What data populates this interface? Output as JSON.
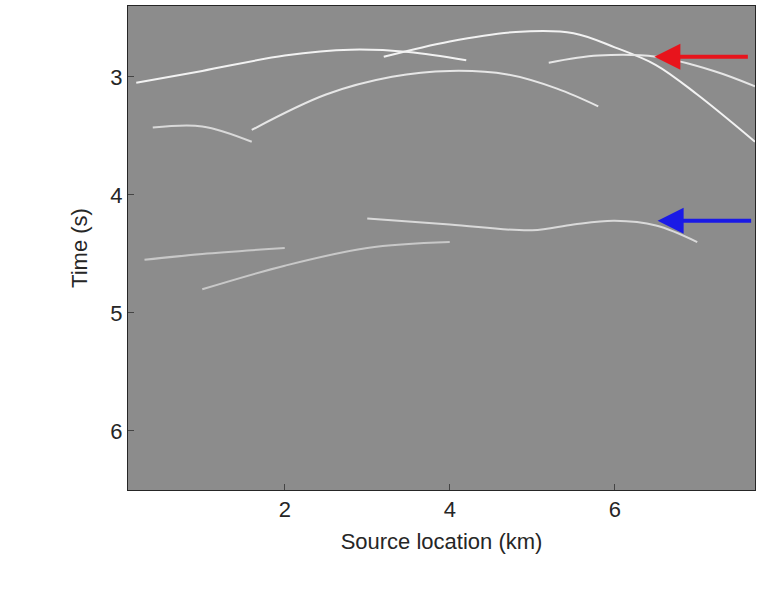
{
  "chart_data": {
    "type": "line",
    "x_label": "Source location (km)",
    "y_label": "Time (s)",
    "xlim": [
      0.1,
      7.7
    ],
    "xticks": [
      2,
      4,
      6
    ],
    "ylim": [
      6.5,
      2.4
    ],
    "yticks": [
      3,
      4,
      5,
      6
    ],
    "grid": false,
    "series": [
      {
        "color": "#f2f2f2",
        "x": [
          0.2,
          1.0,
          2.0,
          2.8,
          3.5,
          4.2
        ],
        "values": [
          3.05,
          2.95,
          2.82,
          2.77,
          2.79,
          2.86
        ]
      },
      {
        "color": "#f2f2f2",
        "x": [
          3.2,
          4.0,
          4.8,
          5.5,
          6.0,
          6.5,
          7.0,
          7.7
        ],
        "values": [
          2.83,
          2.7,
          2.62,
          2.63,
          2.75,
          2.9,
          3.15,
          3.55
        ]
      },
      {
        "color": "#e6e6e6",
        "x": [
          5.2,
          5.8,
          6.5,
          7.2,
          7.7
        ],
        "values": [
          2.88,
          2.82,
          2.83,
          2.95,
          3.08
        ]
      },
      {
        "color": "#e6e6e6",
        "x": [
          1.6,
          2.5,
          3.3,
          4.0,
          4.7,
          5.3,
          5.8
        ],
        "values": [
          3.45,
          3.15,
          3.0,
          2.95,
          2.98,
          3.1,
          3.25
        ]
      },
      {
        "color": "#d9d9d9",
        "x": [
          0.4,
          1.0,
          1.6
        ],
        "values": [
          3.43,
          3.42,
          3.55
        ]
      },
      {
        "color": "#d9d9d9",
        "x": [
          3.0,
          4.0,
          5.0,
          5.5,
          6.0,
          6.5,
          7.0
        ],
        "values": [
          4.2,
          4.25,
          4.3,
          4.25,
          4.22,
          4.26,
          4.4
        ]
      },
      {
        "color": "#c8c8c8",
        "x": [
          0.3,
          1.0,
          2.0
        ],
        "values": [
          4.55,
          4.5,
          4.45
        ]
      },
      {
        "color": "#c8c8c8",
        "x": [
          1.0,
          2.0,
          3.0,
          4.0
        ],
        "values": [
          4.8,
          4.6,
          4.45,
          4.4
        ]
      }
    ],
    "arrows": [
      {
        "x": 6.48,
        "y": 2.83,
        "color": "#e8141c"
      },
      {
        "x": 6.52,
        "y": 4.22,
        "color": "#1a1ae6"
      }
    ]
  }
}
